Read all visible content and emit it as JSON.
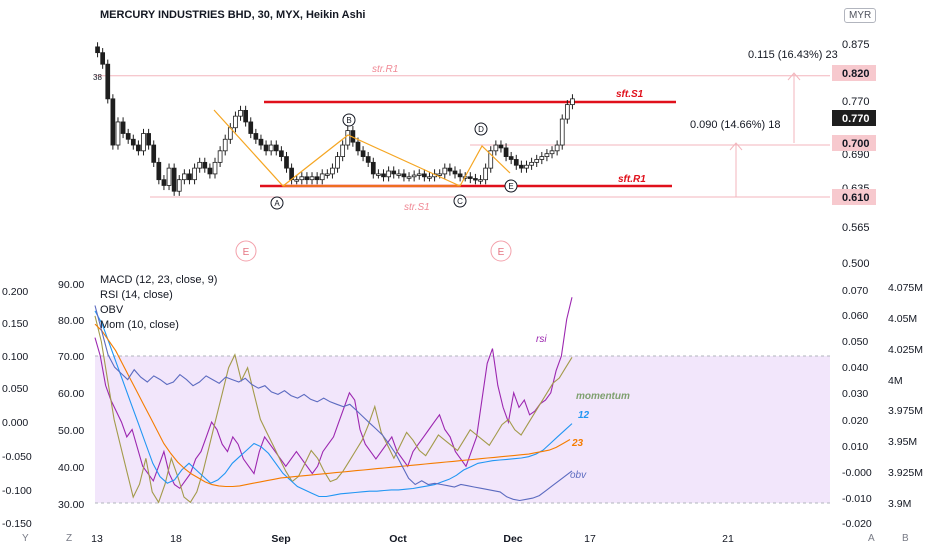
{
  "header": {
    "title": "MERCURY INDUSTRIES BHD, 30, MYX, Heikin Ashi",
    "currency": "MYR"
  },
  "chart_data": [
    {
      "type": "candlestick",
      "title": "MERCURY INDUSTRIES BHD, 30, MYX, Heikin Ashi",
      "y_ticks_right": [
        "0.875",
        "0.820",
        "0.770",
        "0.770",
        "0.700",
        "0.690",
        "0.635",
        "0.610",
        "0.565",
        "0.500"
      ],
      "ylim": [
        0.5,
        0.89
      ],
      "price_labels": {
        "last": "0.770",
        "pattern_high": "0.820",
        "mid": "0.700",
        "low": "0.610"
      },
      "levels": [
        {
          "label": "str.R1",
          "price": 0.82
        },
        {
          "label": "sft.S1",
          "price": 0.775
        },
        {
          "label": "sft.R1",
          "price": 0.635
        },
        {
          "label": "str.S1",
          "price": 0.61
        }
      ],
      "measure_annotations": [
        "0.115 (16.43%) 23",
        "0.090 (14.66%) 18"
      ],
      "pattern_points": [
        {
          "label": "A",
          "price": 0.638
        },
        {
          "label": "B",
          "price": 0.725
        },
        {
          "label": "C",
          "price": 0.638
        },
        {
          "label": "D",
          "price": 0.7
        },
        {
          "label": "E",
          "price": 0.66
        }
      ],
      "event_markers": [
        "E",
        "E"
      ],
      "start_label": "38",
      "candles_close": [
        0.86,
        0.84,
        0.78,
        0.7,
        0.74,
        0.72,
        0.71,
        0.7,
        0.69,
        0.72,
        0.7,
        0.67,
        0.64,
        0.63,
        0.66,
        0.62,
        0.64,
        0.65,
        0.64,
        0.66,
        0.67,
        0.66,
        0.65,
        0.67,
        0.69,
        0.71,
        0.73,
        0.75,
        0.76,
        0.74,
        0.72,
        0.71,
        0.7,
        0.69,
        0.7,
        0.69,
        0.68,
        0.66,
        0.64,
        0.64,
        0.645,
        0.64,
        0.645,
        0.64,
        0.65,
        0.65,
        0.66,
        0.68,
        0.7,
        0.725,
        0.705,
        0.69,
        0.68,
        0.67,
        0.65,
        0.65,
        0.645,
        0.655,
        0.65,
        0.65,
        0.645,
        0.645,
        0.648,
        0.65,
        0.645,
        0.645,
        0.65,
        0.65,
        0.66,
        0.655,
        0.65,
        0.645,
        0.645,
        0.642,
        0.64,
        0.64,
        0.66,
        0.69,
        0.7,
        0.695,
        0.68,
        0.675,
        0.665,
        0.66,
        0.665,
        0.67,
        0.675,
        0.68,
        0.685,
        0.69,
        0.7,
        0.745,
        0.77,
        0.78
      ]
    },
    {
      "type": "line",
      "title": "MACD (12, 23, close, 9)",
      "indicators": [
        "MACD (12, 23, close, 9)",
        "RSI (14, close)",
        "OBV",
        "Mom (10, close)"
      ],
      "x_ticks": [
        "13",
        "18",
        "Sep",
        "Oct",
        "Dec",
        "17",
        "21"
      ],
      "rsi_ticks": [
        "90.00",
        "80.00",
        "70.00",
        "60.00",
        "50.00",
        "40.00",
        "30.00"
      ],
      "rsi_ylim": [
        30,
        90
      ],
      "left_ticks": [
        "0.200",
        "0.150",
        "0.100",
        "0.050",
        "0.000",
        "-0.050",
        "-0.100",
        "-0.150"
      ],
      "right_ticks": [
        "0.070",
        "0.060",
        "0.050",
        "0.040",
        "0.030",
        "0.020",
        "0.010",
        "-0.000",
        "-0.010",
        "-0.020"
      ],
      "obv_ticks": [
        "4.075M",
        "4.05M",
        "4.025M",
        "4M",
        "3.975M",
        "3.95M",
        "3.925M",
        "3.9M"
      ],
      "rsi_band": [
        30,
        70
      ],
      "series": [
        {
          "name": "rsi",
          "color": "#9c27b0",
          "values": [
            75,
            70,
            62,
            58,
            55,
            52,
            48,
            50,
            45,
            40,
            38,
            36,
            40,
            44,
            38,
            35,
            34,
            36,
            38,
            42,
            44,
            48,
            52,
            50,
            46,
            44,
            48,
            46,
            42,
            40,
            38,
            44,
            48,
            46,
            44,
            42,
            40,
            42,
            44,
            42,
            40,
            38,
            40,
            44,
            46,
            48,
            52,
            56,
            60,
            58,
            50,
            46,
            44,
            42,
            44,
            46,
            48,
            44,
            42,
            40,
            44,
            46,
            48,
            50,
            52,
            54,
            50,
            48,
            44,
            42,
            40,
            44,
            48,
            58,
            68,
            72,
            62,
            56,
            52,
            60,
            56,
            58,
            54,
            55,
            57,
            58,
            60,
            66,
            70,
            80,
            86
          ]
        },
        {
          "name": "momentum",
          "color": "#a39a4a",
          "values": [
            0.06,
            0.05,
            0.035,
            0.02,
            0.01,
            0.0,
            -0.01,
            -0.005,
            0.005,
            -0.008,
            -0.012,
            -0.005,
            0.005,
            -0.002,
            -0.01,
            -0.012,
            -0.008,
            0.0,
            0.01,
            0.02,
            0.03,
            0.04,
            0.045,
            0.035,
            0.04,
            0.03,
            0.02,
            0.015,
            0.01,
            0.005,
            0.0,
            -0.004,
            -0.002,
            0.003,
            0.008,
            0.005,
            0.0,
            -0.004,
            -0.003,
            0.0,
            0.004,
            0.008,
            0.012,
            0.018,
            0.025,
            0.015,
            0.01,
            0.005,
            0.01,
            0.015,
            0.012,
            0.008,
            0.006,
            0.01,
            0.014,
            0.012,
            0.01,
            0.008,
            0.012,
            0.016,
            0.014,
            0.012,
            0.01,
            0.014,
            0.018,
            0.02,
            0.016,
            0.014,
            0.018,
            0.022,
            0.026,
            0.03,
            0.034,
            0.036,
            0.04,
            0.044
          ]
        },
        {
          "name": "12",
          "color": "#2196f3",
          "values": [
            0.17,
            0.15,
            0.12,
            0.09,
            0.06,
            0.03,
            0.0,
            -0.03,
            -0.06,
            -0.08,
            -0.09,
            -0.085,
            -0.07,
            -0.06,
            -0.07,
            -0.08,
            -0.09,
            -0.085,
            -0.075,
            -0.06,
            -0.05,
            -0.04,
            -0.03,
            -0.035,
            -0.045,
            -0.06,
            -0.075,
            -0.085,
            -0.095,
            -0.1,
            -0.105,
            -0.11,
            -0.11,
            -0.108,
            -0.106,
            -0.105,
            -0.104,
            -0.103,
            -0.102,
            -0.102,
            -0.101,
            -0.1,
            -0.1,
            -0.099,
            -0.098,
            -0.096,
            -0.094,
            -0.092,
            -0.088,
            -0.084,
            -0.078,
            -0.07,
            -0.065,
            -0.06,
            -0.058,
            -0.056,
            -0.055,
            -0.054,
            -0.053,
            -0.052,
            -0.05,
            -0.046,
            -0.04,
            -0.03,
            -0.02,
            -0.01,
            0.0
          ]
        },
        {
          "name": "23",
          "color": "#f57c00",
          "values": [
            0.15,
            0.14,
            0.125,
            0.11,
            0.09,
            0.07,
            0.05,
            0.03,
            0.01,
            -0.01,
            -0.03,
            -0.045,
            -0.058,
            -0.068,
            -0.076,
            -0.082,
            -0.088,
            -0.092,
            -0.094,
            -0.095,
            -0.095,
            -0.094,
            -0.092,
            -0.09,
            -0.088,
            -0.086,
            -0.084,
            -0.082,
            -0.081,
            -0.08,
            -0.079,
            -0.078,
            -0.077,
            -0.076,
            -0.075,
            -0.074,
            -0.073,
            -0.072,
            -0.071,
            -0.07,
            -0.069,
            -0.068,
            -0.067,
            -0.066,
            -0.065,
            -0.064,
            -0.063,
            -0.062,
            -0.061,
            -0.06,
            -0.059,
            -0.058,
            -0.057,
            -0.056,
            -0.055,
            -0.054,
            -0.053,
            -0.052,
            -0.051,
            -0.05,
            -0.049,
            -0.048,
            -0.047,
            -0.046,
            -0.044,
            -0.042,
            -0.04,
            -0.036,
            -0.03,
            -0.024
          ]
        },
        {
          "name": "obv",
          "color": "#5c6bc0",
          "values": [
            4.06,
            4.04,
            4.02,
            4.01,
            4.005,
            4.0,
            4.008,
            4.002,
            3.998,
            4.003,
            4.0,
            3.996,
            3.998,
            4.004,
            4.0,
            3.995,
            3.998,
            4.003,
            4.0,
            3.997,
            4.002,
            4.0,
            3.998,
            4.001,
            3.996,
            3.993,
            3.995,
            3.99,
            3.988,
            3.991,
            3.987,
            3.985,
            3.988,
            3.984,
            3.982,
            3.985,
            3.982,
            3.98,
            3.978,
            3.98,
            3.975,
            3.97,
            3.965,
            3.96,
            3.955,
            3.948,
            3.94,
            3.93,
            3.92,
            3.915,
            3.918,
            3.915,
            3.916,
            3.915,
            3.914,
            3.913,
            3.915,
            3.914,
            3.913,
            3.912,
            3.911,
            3.91,
            3.909,
            3.905,
            3.903,
            3.902,
            3.903,
            3.904,
            3.906,
            3.91,
            3.914,
            3.918,
            3.922,
            3.926
          ]
        }
      ]
    }
  ],
  "footer": {
    "left_buttons": [
      "Y",
      "Z"
    ],
    "right_buttons": [
      "A",
      "B"
    ]
  },
  "colors": {
    "up": "#ffffff",
    "down": "#1e1e1e",
    "level": "#e0101b",
    "zigzag": "#f5a623",
    "band": "#f2e6fb"
  }
}
